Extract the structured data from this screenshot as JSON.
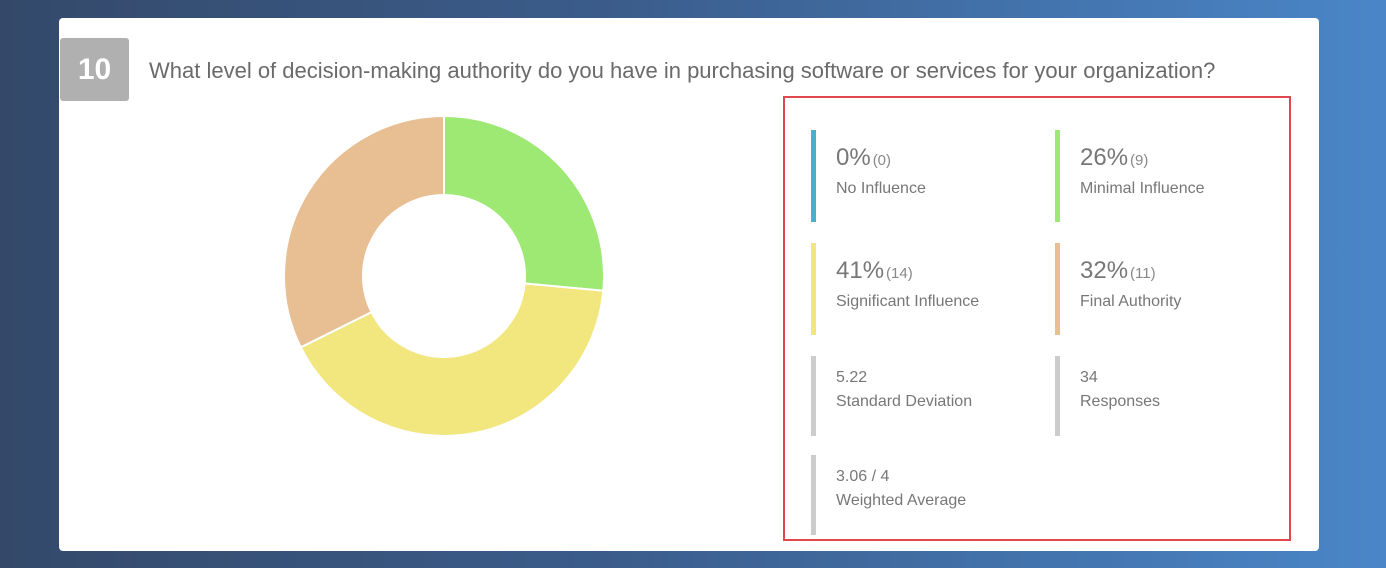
{
  "question": {
    "number": "10",
    "text": "What level of decision-making authority do you have in purchasing software or services for your organization?"
  },
  "chart_data": {
    "type": "pie",
    "categories": [
      "No Influence",
      "Minimal Influence",
      "Significant Influence",
      "Final Authority"
    ],
    "values": [
      0,
      9,
      14,
      11
    ],
    "percents": [
      "0%",
      "26%",
      "41%",
      "32%"
    ],
    "counts": [
      "(0)",
      "(9)",
      "(14)",
      "(11)"
    ],
    "colors": [
      "#4bafc9",
      "#9ee874",
      "#f2e67e",
      "#e8be93"
    ],
    "donut": true
  },
  "summary": {
    "std_dev_value": "5.22",
    "std_dev_label": "Standard Deviation",
    "responses_value": "34",
    "responses_label": "Responses",
    "weighted_value": "3.06 / 4",
    "weighted_label": "Weighted Average",
    "neutral_color": "#cccccc"
  }
}
